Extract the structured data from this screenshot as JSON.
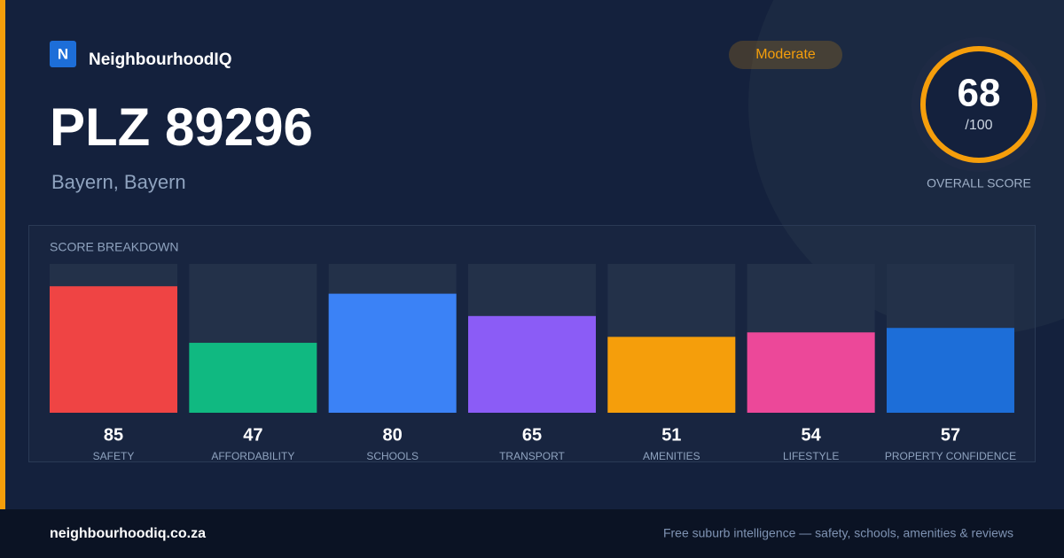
{
  "brand": {
    "logo": "N",
    "name": "NeighbourhoodIQ"
  },
  "header": {
    "title": "PLZ 89296",
    "subtitle": "Bayern, Bayern",
    "badge": "Moderate"
  },
  "score": {
    "value": 68,
    "out_of": "/100",
    "label": "OVERALL SCORE"
  },
  "chart_data": {
    "type": "bar",
    "title": "SCORE BREAKDOWN",
    "categories": [
      "SAFETY",
      "AFFORDABILITY",
      "SCHOOLS",
      "TRANSPORT",
      "AMENITIES",
      "LIFESTYLE",
      "PROPERTY CONFIDENCE"
    ],
    "values": [
      85,
      47,
      80,
      65,
      51,
      54,
      57
    ],
    "colors": [
      "#ef4444",
      "#10b981",
      "#3b82f6",
      "#8b5cf6",
      "#f59e0b",
      "#ec4899",
      "#1d6ed8"
    ],
    "ylim": [
      0,
      100
    ]
  },
  "footer": {
    "site": "neighbourhoodiq.co.za",
    "tagline": "Free suburb intelligence — safety, schools, amenities & reviews"
  }
}
